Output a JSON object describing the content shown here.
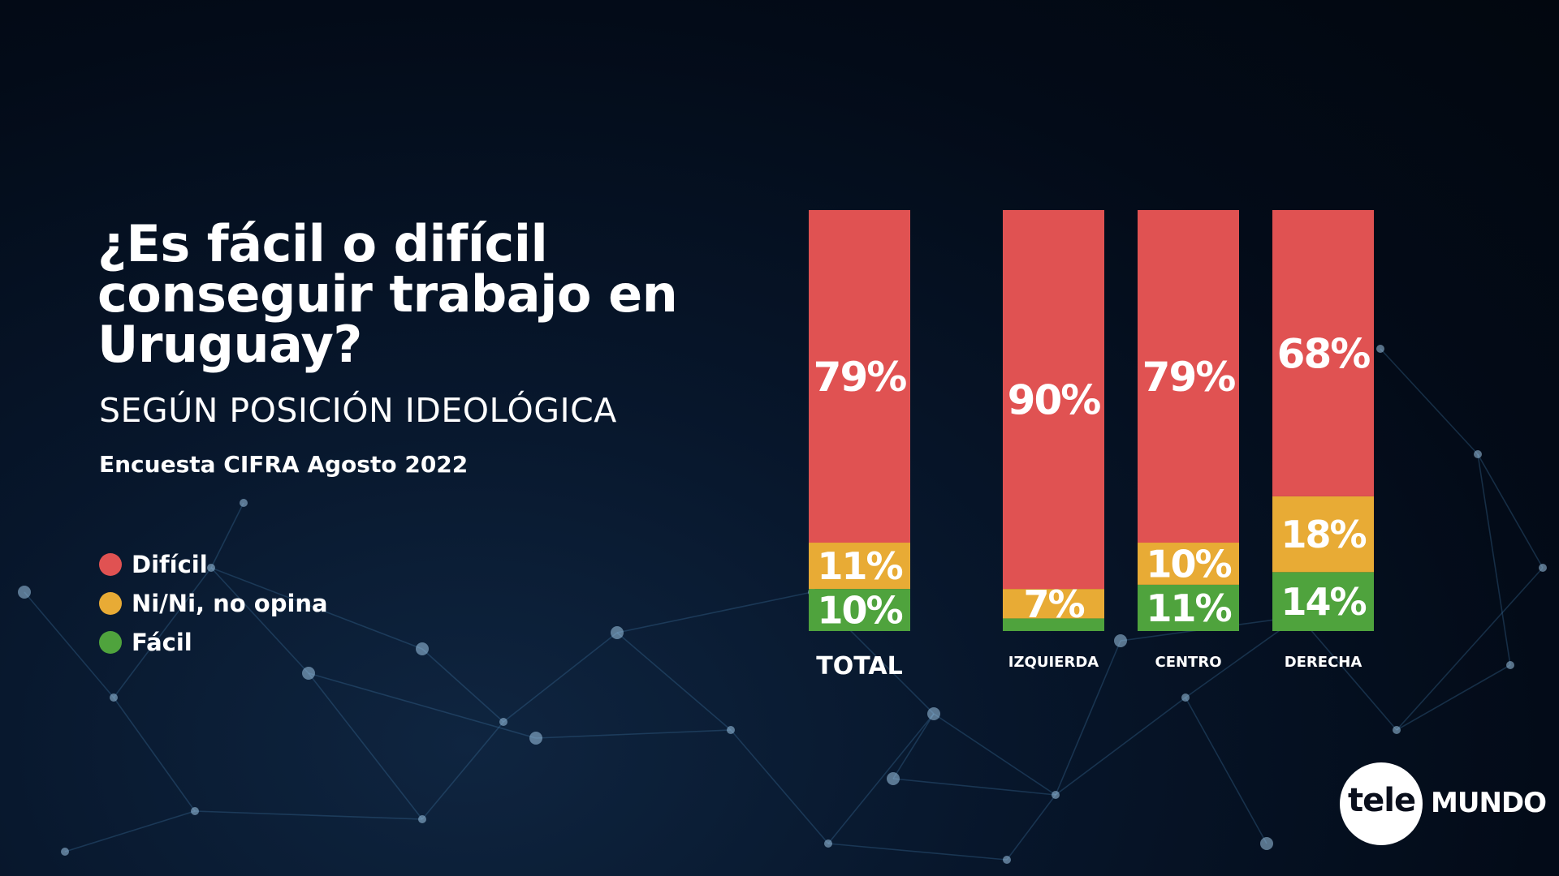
{
  "title": "¿Es fácil o difícil conseguir trabajo en Uruguay?",
  "subtitle": "SEGÚN POSICIÓN IDEOLÓGICA",
  "source": "Encuesta CIFRA Agosto 2022",
  "legend": [
    {
      "label": "Difícil",
      "color": "#e05252"
    },
    {
      "label": "Ni/Ni, no opina",
      "color": "#e8ab35"
    },
    {
      "label": "Fácil",
      "color": "#4fa33d"
    }
  ],
  "logo": {
    "tele": "tele",
    "mundo": "MUNDO"
  },
  "chart_data": {
    "type": "bar",
    "stacked": true,
    "categories": [
      "TOTAL",
      "IZQUIERDA",
      "CENTRO",
      "DERECHA"
    ],
    "series": [
      {
        "name": "Fácil",
        "color": "#4fa33d",
        "values": [
          10,
          3,
          11,
          14
        ],
        "labels": [
          "10%",
          "",
          "11%",
          "14%"
        ]
      },
      {
        "name": "Ni/Ni, no opina",
        "color": "#e8ab35",
        "values": [
          11,
          7,
          10,
          18
        ],
        "labels": [
          "11%",
          "7%",
          "10%",
          "18%"
        ]
      },
      {
        "name": "Difícil",
        "color": "#e05252",
        "values": [
          79,
          90,
          79,
          68
        ],
        "labels": [
          "79%",
          "90%",
          "79%",
          "68%"
        ]
      }
    ],
    "ylim": [
      0,
      100
    ],
    "grid": false,
    "legend_position": "left"
  }
}
